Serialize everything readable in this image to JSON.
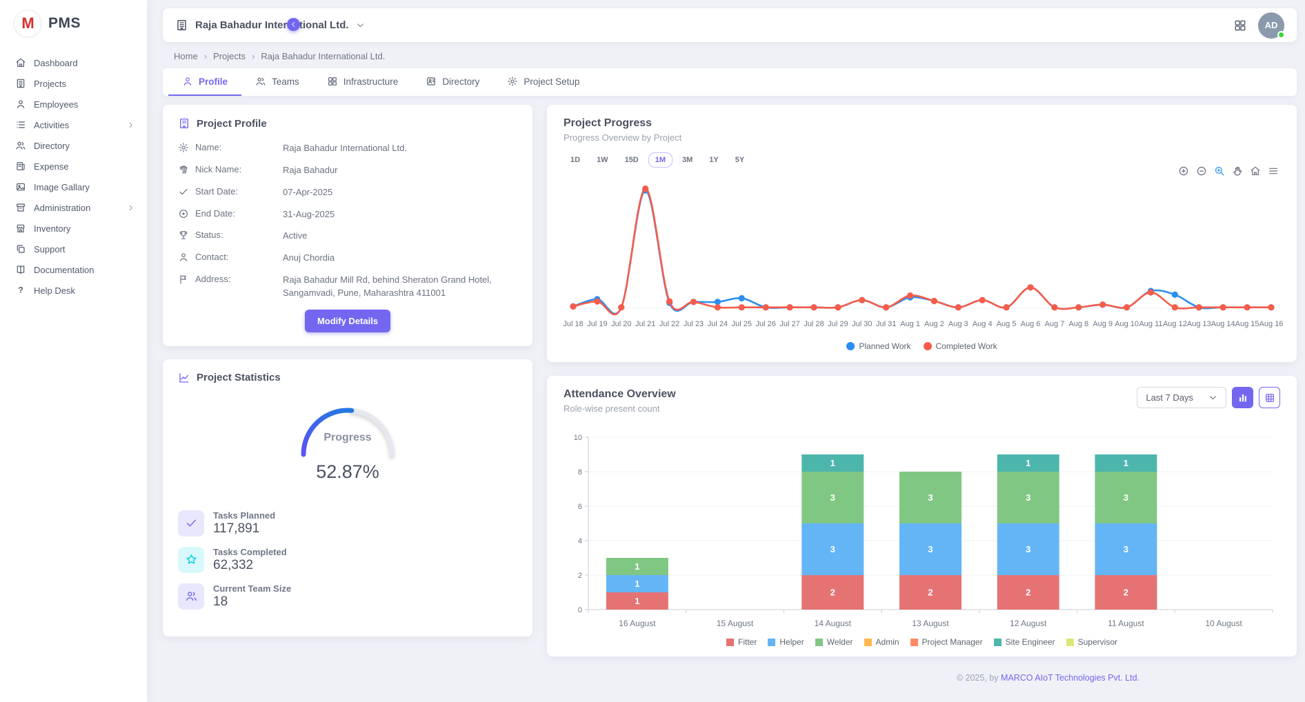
{
  "app": {
    "brand_letter": "M",
    "name": "PMS"
  },
  "sidebar": {
    "items": [
      {
        "label": "Dashboard",
        "icon": "home",
        "chevron": false
      },
      {
        "label": "Projects",
        "icon": "building",
        "chevron": false
      },
      {
        "label": "Employees",
        "icon": "user",
        "chevron": false
      },
      {
        "label": "Activities",
        "icon": "list",
        "chevron": true
      },
      {
        "label": "Directory",
        "icon": "users",
        "chevron": false
      },
      {
        "label": "Expense",
        "icon": "receipt",
        "chevron": false
      },
      {
        "label": "Image Gallary",
        "icon": "image",
        "chevron": false
      },
      {
        "label": "Administration",
        "icon": "archive",
        "chevron": true
      },
      {
        "label": "Inventory",
        "icon": "store",
        "chevron": false
      },
      {
        "label": "Support",
        "icon": "copy",
        "chevron": false
      },
      {
        "label": "Documentation",
        "icon": "book",
        "chevron": false
      },
      {
        "label": "Help Desk",
        "icon": "help",
        "chevron": false
      }
    ]
  },
  "header": {
    "company": "Raja Bahadur International Ltd.",
    "avatar_initials": "AD"
  },
  "breadcrumb": {
    "items": [
      "Home",
      "Projects",
      "Raja Bahadur International Ltd."
    ]
  },
  "tabs": [
    {
      "label": "Profile",
      "icon": "user",
      "active": true
    },
    {
      "label": "Teams",
      "icon": "users",
      "active": false
    },
    {
      "label": "Infrastructure",
      "icon": "grid",
      "active": false
    },
    {
      "label": "Directory",
      "icon": "idcard",
      "active": false
    },
    {
      "label": "Project Setup",
      "icon": "gear",
      "active": false
    }
  ],
  "profile_card": {
    "title": "Project Profile",
    "fields": [
      {
        "icon": "gear",
        "label": "Name:",
        "value": "Raja Bahadur International Ltd."
      },
      {
        "icon": "fingerprint",
        "label": "Nick Name:",
        "value": "Raja Bahadur"
      },
      {
        "icon": "check",
        "label": "Start Date:",
        "value": "07-Apr-2025"
      },
      {
        "icon": "target",
        "label": "End Date:",
        "value": "31-Aug-2025"
      },
      {
        "icon": "trophy",
        "label": "Status:",
        "value": "Active"
      },
      {
        "icon": "user",
        "label": "Contact:",
        "value": "Anuj Chordia"
      },
      {
        "icon": "flag",
        "label": "Address:",
        "value": "Raja Bahadur Mill Rd, behind Sheraton Grand Hotel, Sangamvadi, Pune, Maharashtra 411001"
      }
    ],
    "button_label": "Modify Details"
  },
  "stats_card": {
    "title": "Project Statistics",
    "gauge_label": "Progress",
    "gauge_value": "52.87%",
    "gauge_percent": 52.87,
    "gauge_colors": {
      "start": "#5a54f2",
      "end": "#1f7ae0",
      "rest": "#e7e8ef"
    },
    "stats": [
      {
        "icon": "check",
        "label": "Tasks Planned",
        "value": "117,891",
        "icon_bg": "#e9e7fd",
        "icon_color": "#7367f0"
      },
      {
        "icon": "star",
        "label": "Tasks Completed",
        "value": "62,332",
        "icon_bg": "#d9f8fc",
        "icon_color": "#00cfe8"
      },
      {
        "icon": "users",
        "label": "Current Team Size",
        "value": "18",
        "icon_bg": "#e9e7fd",
        "icon_color": "#7367f0"
      }
    ]
  },
  "progress_card": {
    "title": "Project Progress",
    "subtitle": "Progress Overview by Project",
    "ranges": [
      "1D",
      "1W",
      "15D",
      "1M",
      "3M",
      "1Y",
      "5Y"
    ],
    "active_range": "1M",
    "toolbar": [
      "zoom-in",
      "zoom-out",
      "selection-zoom",
      "pan",
      "home",
      "menu"
    ],
    "toolbar_active": "selection-zoom"
  },
  "attendance_card": {
    "title": "Attendance Overview",
    "subtitle": "Role-wise present count",
    "filter_value": "Last 7 Days",
    "view_toggles": [
      "bar-view",
      "table-view"
    ],
    "active_toggle": "bar-view"
  },
  "footer": {
    "prefix": "© 2025, by ",
    "company": "MARCO AIoT Technologies Pvt. Ltd."
  },
  "chart_data": [
    {
      "type": "line",
      "title": "Project Progress",
      "x": [
        "Jul 18",
        "Jul 19",
        "Jul 20",
        "Jul 21",
        "Jul 22",
        "Jul 23",
        "Jul 24",
        "Jul 25",
        "Jul 26",
        "Jul 27",
        "Jul 28",
        "Jul 29",
        "Jul 30",
        "Jul 31",
        "Aug 1",
        "Aug 2",
        "Aug 3",
        "Aug 4",
        "Aug 5",
        "Aug 6",
        "Aug 7",
        "Aug 8",
        "Aug 9",
        "Aug 10",
        "Aug 11",
        "Aug 12",
        "Aug 13",
        "Aug 14",
        "Aug 15",
        "Aug 16"
      ],
      "series": [
        {
          "name": "Planned Work",
          "color": "#2b8ef0",
          "values": [
            0.2,
            1.0,
            0.1,
            13.0,
            0.6,
            0.7,
            0.7,
            1.1,
            0.1,
            0.1,
            0.1,
            0.1,
            0.9,
            0.1,
            1.2,
            0.8,
            0.1,
            0.9,
            0.1,
            2.3,
            0.1,
            0.1,
            0.4,
            0.1,
            1.9,
            1.5,
            0.1,
            0.1,
            0.1,
            0.1
          ]
        },
        {
          "name": "Completed Work",
          "color": "#f75c4a",
          "values": [
            0.2,
            0.75,
            0.1,
            13.2,
            0.75,
            0.7,
            0.1,
            0.1,
            0.1,
            0.1,
            0.1,
            0.1,
            0.9,
            0.1,
            1.4,
            0.8,
            0.1,
            0.9,
            0.1,
            2.3,
            0.1,
            0.1,
            0.4,
            0.1,
            1.75,
            0.1,
            0.1,
            0.1,
            0.1,
            0.1
          ]
        }
      ],
      "ylim": [
        0,
        14
      ],
      "grid": false,
      "legend_position": "bottom"
    },
    {
      "type": "bar",
      "stacked": true,
      "title": "Attendance Overview",
      "categories": [
        "16 August",
        "15 August",
        "14 August",
        "13 August",
        "12 August",
        "11 August",
        "10 August"
      ],
      "series": [
        {
          "name": "Fitter",
          "color": "#e57373",
          "values": [
            1,
            0,
            2,
            2,
            2,
            2,
            0
          ]
        },
        {
          "name": "Helper",
          "color": "#64b5f6",
          "values": [
            1,
            0,
            3,
            3,
            3,
            3,
            0
          ]
        },
        {
          "name": "Welder",
          "color": "#81c784",
          "values": [
            1,
            0,
            3,
            3,
            3,
            3,
            0
          ]
        },
        {
          "name": "Admin",
          "color": "#ffb74d",
          "values": [
            0,
            0,
            0,
            0,
            0,
            0,
            0
          ]
        },
        {
          "name": "Project Manager",
          "color": "#ff8a65",
          "values": [
            0,
            0,
            0,
            0,
            0,
            0,
            0
          ]
        },
        {
          "name": "Site Engineer",
          "color": "#4db6ac",
          "values": [
            0,
            0,
            1,
            0,
            1,
            1,
            0
          ]
        },
        {
          "name": "Supervisor",
          "color": "#dce775",
          "values": [
            0,
            0,
            0,
            0,
            0,
            0,
            0
          ]
        }
      ],
      "ylim": [
        0,
        10
      ],
      "yticks": [
        0,
        2,
        4,
        6,
        8,
        10
      ],
      "grid": true,
      "legend_position": "bottom"
    }
  ]
}
